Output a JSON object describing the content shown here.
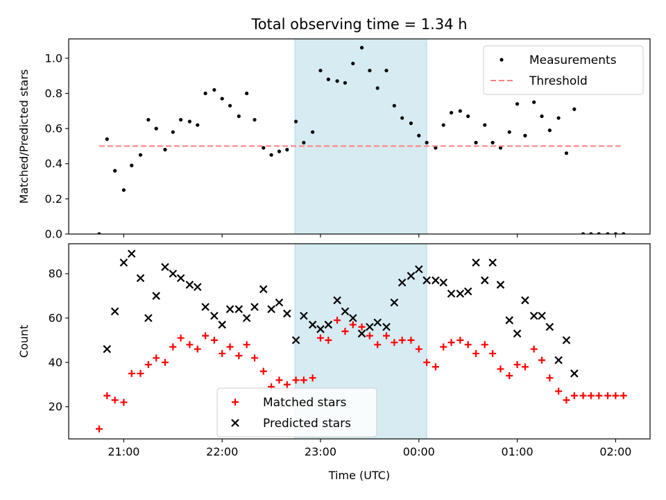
{
  "chart_data": {
    "type": "scatter",
    "title": "Total observing time = 1.34 h",
    "xlabel": "Time (UTC)",
    "shared_x": true,
    "x_unit": "hours since 21:00 UTC (ticks labeled as clock times)",
    "xlim": [
      -0.56,
      5.35
    ],
    "x_ticks": [
      {
        "value": 0,
        "label": "21:00"
      },
      {
        "value": 1,
        "label": "22:00"
      },
      {
        "value": 2,
        "label": "23:00"
      },
      {
        "value": 3,
        "label": "00:00"
      },
      {
        "value": 4,
        "label": "01:00"
      },
      {
        "value": 5,
        "label": "02:00"
      }
    ],
    "highlight_span": {
      "x_start": 1.74,
      "x_end": 3.08,
      "color": "#add8e6"
    },
    "panels": [
      {
        "id": "ratio",
        "ylabel": "Matched/Predicted stars",
        "ylim": [
          0,
          1.11
        ],
        "y_ticks": [
          "0.0",
          "0.2",
          "0.4",
          "0.6",
          "0.8",
          "1.0"
        ],
        "legend": {
          "position": "upper right"
        },
        "series": [
          {
            "name": "Measurements",
            "marker": "dot",
            "color": "#000000",
            "points": [
              [
                -0.25,
                0.0
              ],
              [
                -0.17,
                0.54
              ],
              [
                -0.09,
                0.36
              ],
              [
                0.0,
                0.25
              ],
              [
                0.08,
                0.39
              ],
              [
                0.17,
                0.45
              ],
              [
                0.25,
                0.65
              ],
              [
                0.33,
                0.6
              ],
              [
                0.42,
                0.48
              ],
              [
                0.5,
                0.58
              ],
              [
                0.58,
                0.65
              ],
              [
                0.67,
                0.64
              ],
              [
                0.75,
                0.62
              ],
              [
                0.83,
                0.8
              ],
              [
                0.92,
                0.82
              ],
              [
                1.0,
                0.77
              ],
              [
                1.08,
                0.73
              ],
              [
                1.17,
                0.67
              ],
              [
                1.25,
                0.8
              ],
              [
                1.33,
                0.65
              ],
              [
                1.42,
                0.49
              ],
              [
                1.5,
                0.45
              ],
              [
                1.58,
                0.47
              ],
              [
                1.66,
                0.48
              ],
              [
                1.75,
                0.64
              ],
              [
                1.83,
                0.52
              ],
              [
                1.92,
                0.58
              ],
              [
                2.0,
                0.93
              ],
              [
                2.08,
                0.88
              ],
              [
                2.17,
                0.87
              ],
              [
                2.25,
                0.86
              ],
              [
                2.33,
                0.97
              ],
              [
                2.42,
                1.06
              ],
              [
                2.5,
                0.93
              ],
              [
                2.58,
                0.83
              ],
              [
                2.67,
                0.93
              ],
              [
                2.75,
                0.73
              ],
              [
                2.83,
                0.66
              ],
              [
                2.92,
                0.63
              ],
              [
                3.0,
                0.56
              ],
              [
                3.08,
                0.52
              ],
              [
                3.17,
                0.49
              ],
              [
                3.25,
                0.62
              ],
              [
                3.33,
                0.69
              ],
              [
                3.42,
                0.7
              ],
              [
                3.5,
                0.67
              ],
              [
                3.58,
                0.52
              ],
              [
                3.67,
                0.62
              ],
              [
                3.75,
                0.52
              ],
              [
                3.83,
                0.49
              ],
              [
                3.92,
                0.58
              ],
              [
                4.0,
                0.74
              ],
              [
                4.08,
                0.56
              ],
              [
                4.17,
                0.75
              ],
              [
                4.25,
                0.67
              ],
              [
                4.33,
                0.59
              ],
              [
                4.42,
                0.66
              ],
              [
                4.5,
                0.46
              ],
              [
                4.58,
                0.71
              ],
              [
                4.67,
                0.0
              ],
              [
                4.75,
                0.0
              ],
              [
                4.83,
                0.0
              ],
              [
                4.92,
                0.0
              ],
              [
                5.0,
                0.0
              ],
              [
                5.08,
                0.0
              ]
            ]
          },
          {
            "name": "Threshold",
            "marker": "dashed-line",
            "color": "#ff7f7f",
            "points": [
              [
                -0.25,
                0.5
              ],
              [
                5.05,
                0.5
              ]
            ]
          }
        ]
      },
      {
        "id": "counts",
        "ylabel": "Count",
        "ylim": [
          5.5,
          93.5
        ],
        "y_ticks": [
          "20",
          "40",
          "60",
          "80"
        ],
        "legend": {
          "position": "lower center"
        },
        "series": [
          {
            "name": "Matched stars",
            "marker": "plus",
            "color": "#ff0000",
            "points": [
              [
                -0.25,
                10
              ],
              [
                -0.17,
                25
              ],
              [
                -0.09,
                23
              ],
              [
                0.0,
                22
              ],
              [
                0.08,
                35
              ],
              [
                0.17,
                35
              ],
              [
                0.25,
                39
              ],
              [
                0.33,
                42
              ],
              [
                0.42,
                40
              ],
              [
                0.5,
                47
              ],
              [
                0.58,
                51
              ],
              [
                0.67,
                48
              ],
              [
                0.75,
                46
              ],
              [
                0.83,
                52
              ],
              [
                0.92,
                50
              ],
              [
                1.0,
                44
              ],
              [
                1.08,
                47
              ],
              [
                1.17,
                43
              ],
              [
                1.25,
                48
              ],
              [
                1.33,
                42
              ],
              [
                1.42,
                36
              ],
              [
                1.5,
                29
              ],
              [
                1.58,
                32
              ],
              [
                1.66,
                30
              ],
              [
                1.75,
                32
              ],
              [
                1.83,
                32
              ],
              [
                1.92,
                33
              ],
              [
                2.0,
                51
              ],
              [
                2.08,
                50
              ],
              [
                2.17,
                59
              ],
              [
                2.25,
                54
              ],
              [
                2.33,
                57
              ],
              [
                2.42,
                56
              ],
              [
                2.5,
                52
              ],
              [
                2.58,
                48
              ],
              [
                2.67,
                52
              ],
              [
                2.75,
                49
              ],
              [
                2.83,
                50
              ],
              [
                2.92,
                50
              ],
              [
                3.0,
                46
              ],
              [
                3.08,
                40
              ],
              [
                3.17,
                38
              ],
              [
                3.25,
                47
              ],
              [
                3.33,
                49
              ],
              [
                3.42,
                50
              ],
              [
                3.5,
                48
              ],
              [
                3.58,
                44
              ],
              [
                3.67,
                48
              ],
              [
                3.75,
                44
              ],
              [
                3.83,
                37
              ],
              [
                3.92,
                34
              ],
              [
                4.0,
                39
              ],
              [
                4.08,
                38
              ],
              [
                4.17,
                46
              ],
              [
                4.25,
                41
              ],
              [
                4.33,
                33
              ],
              [
                4.42,
                27
              ],
              [
                4.5,
                23
              ],
              [
                4.58,
                25
              ],
              [
                4.67,
                25
              ],
              [
                4.75,
                25
              ],
              [
                4.83,
                25
              ],
              [
                4.92,
                25
              ],
              [
                5.0,
                25
              ],
              [
                5.08,
                25
              ]
            ]
          },
          {
            "name": "Predicted stars",
            "marker": "x",
            "color": "#000000",
            "points": [
              [
                -0.17,
                46
              ],
              [
                -0.09,
                63
              ],
              [
                0.0,
                85
              ],
              [
                0.08,
                89
              ],
              [
                0.17,
                78
              ],
              [
                0.25,
                60
              ],
              [
                0.33,
                70
              ],
              [
                0.42,
                83
              ],
              [
                0.5,
                80
              ],
              [
                0.58,
                78
              ],
              [
                0.67,
                75
              ],
              [
                0.75,
                74
              ],
              [
                0.83,
                65
              ],
              [
                0.92,
                61
              ],
              [
                1.0,
                57
              ],
              [
                1.08,
                64
              ],
              [
                1.17,
                64
              ],
              [
                1.25,
                60
              ],
              [
                1.33,
                65
              ],
              [
                1.42,
                73
              ],
              [
                1.5,
                64
              ],
              [
                1.58,
                67
              ],
              [
                1.66,
                62
              ],
              [
                1.75,
                50
              ],
              [
                1.83,
                61
              ],
              [
                1.92,
                57
              ],
              [
                2.0,
                55
              ],
              [
                2.08,
                57
              ],
              [
                2.17,
                68
              ],
              [
                2.25,
                63
              ],
              [
                2.33,
                60
              ],
              [
                2.42,
                53
              ],
              [
                2.5,
                56
              ],
              [
                2.58,
                58
              ],
              [
                2.67,
                56
              ],
              [
                2.75,
                67
              ],
              [
                2.83,
                76
              ],
              [
                2.92,
                79
              ],
              [
                3.0,
                82
              ],
              [
                3.08,
                77
              ],
              [
                3.17,
                77
              ],
              [
                3.25,
                76
              ],
              [
                3.33,
                71
              ],
              [
                3.42,
                71
              ],
              [
                3.5,
                72
              ],
              [
                3.58,
                85
              ],
              [
                3.67,
                77
              ],
              [
                3.75,
                85
              ],
              [
                3.83,
                75
              ],
              [
                3.92,
                59
              ],
              [
                4.0,
                53
              ],
              [
                4.08,
                68
              ],
              [
                4.17,
                61
              ],
              [
                4.25,
                61
              ],
              [
                4.33,
                56
              ],
              [
                4.42,
                41
              ],
              [
                4.5,
                50
              ],
              [
                4.58,
                35
              ]
            ]
          }
        ]
      }
    ]
  }
}
